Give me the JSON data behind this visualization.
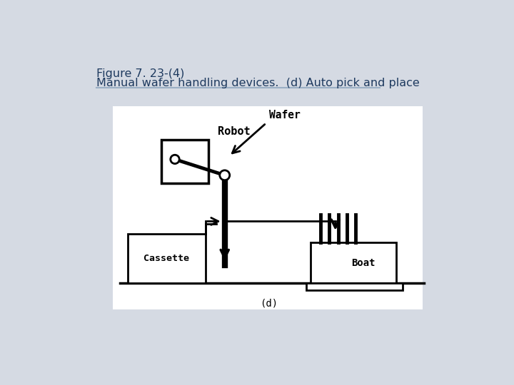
{
  "title_line1": "Figure 7. 23-(4)",
  "title_line2": "Manual wafer handling devices.  (d) Auto pick and place",
  "title_color": "#1e3a5f",
  "title_fontsize": 11.5,
  "bg_color": "#d5dae3",
  "diagram_bg": "#ffffff",
  "label_robot": "Robot",
  "label_wafer": "Wafer",
  "label_cassette": "Cassette",
  "label_boat": "Boat",
  "label_sub": "(d)",
  "sep_color": "#9aafc5",
  "black": "#000000"
}
